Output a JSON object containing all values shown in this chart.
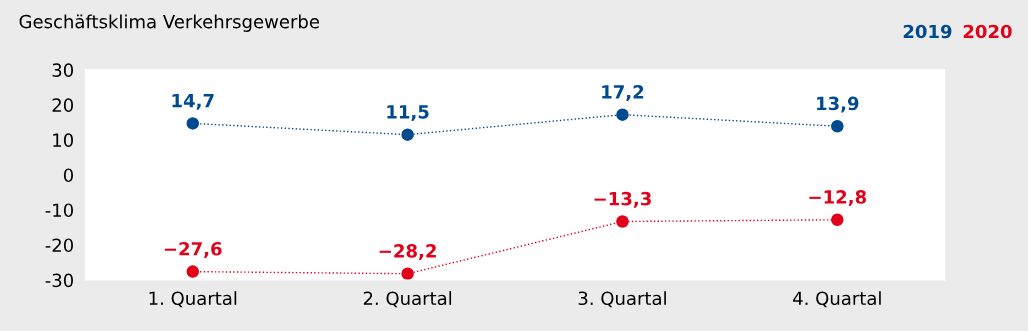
{
  "chart_data": {
    "type": "line",
    "title": "Geschäftsklima Verkehrsgewerbe",
    "categories": [
      "1. Quartal",
      "2. Quartal",
      "3. Quartal",
      "4. Quartal"
    ],
    "series": [
      {
        "name": "2019",
        "color": "#004a8f",
        "values": [
          14.7,
          11.5,
          17.2,
          13.9
        ],
        "value_labels": [
          "14,7",
          "11,5",
          "17,2",
          "13,9"
        ]
      },
      {
        "name": "2020",
        "color": "#e2001a",
        "values": [
          -27.6,
          -28.2,
          -13.3,
          -12.8
        ],
        "value_labels": [
          "−27,6",
          "−28,2",
          "−13,3",
          "−12,8"
        ]
      }
    ],
    "ylim": [
      -30,
      30
    ],
    "yticks": [
      -30,
      -20,
      -10,
      0,
      10,
      20,
      30
    ],
    "grid": false,
    "legend": "top right",
    "marker": "circle",
    "line_style": "dotted"
  }
}
